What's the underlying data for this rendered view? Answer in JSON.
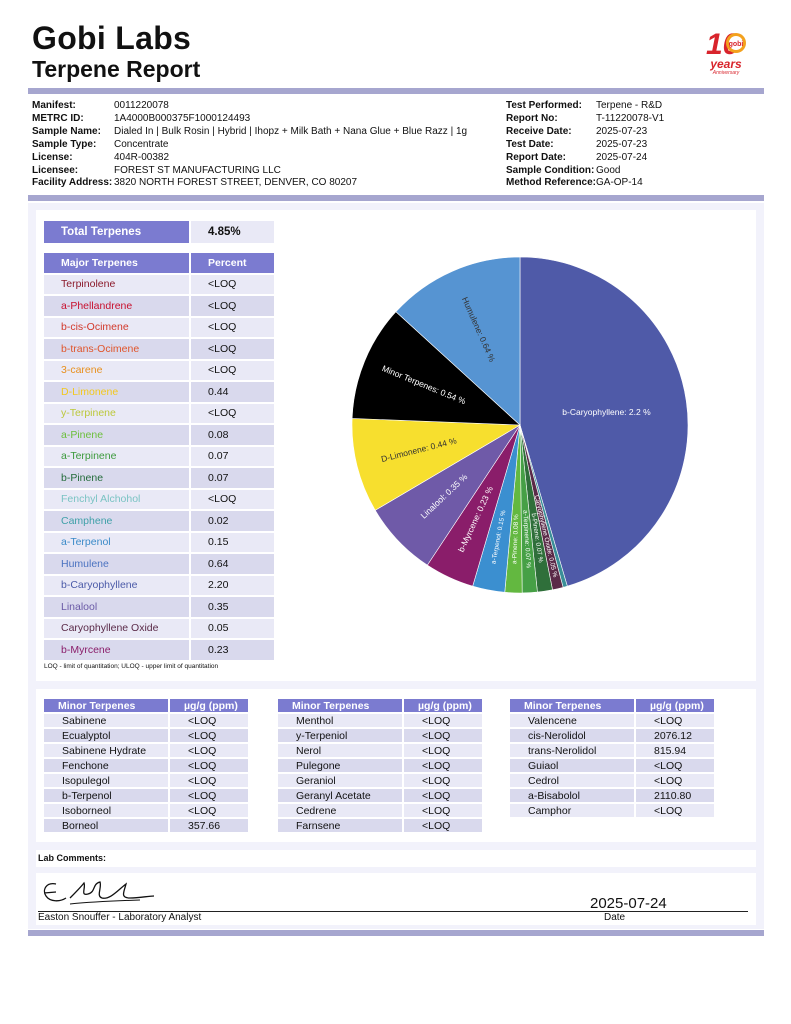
{
  "header": {
    "brand": "Gobi Labs",
    "subtitle": "Terpene Report",
    "logo": {
      "text_big": "10",
      "text_small": "years",
      "text_tiny": "Anniversary",
      "badge": "gobi",
      "color": "#d8242c",
      "accent": "#f3a11d"
    }
  },
  "meta_left": [
    {
      "k": "Manifest:",
      "v": "0011220078"
    },
    {
      "k": "METRC ID:",
      "v": "1A4000B000375F1000124493"
    },
    {
      "k": "Sample Name:",
      "v": "Dialed In | Bulk Rosin | Hybrid | Ihopz + Milk Bath + Nana Glue + Blue Razz | 1g"
    },
    {
      "k": "Sample Type:",
      "v": "Concentrate"
    },
    {
      "k": "License:",
      "v": "404R-00382"
    },
    {
      "k": "Licensee:",
      "v": "FOREST ST MANUFACTURING LLC"
    },
    {
      "k": "Facility Address:",
      "v": "3820 NORTH FOREST STREET, DENVER, CO 80207"
    }
  ],
  "meta_right": [
    {
      "k": "Test Performed:",
      "v": "Terpene - R&D"
    },
    {
      "k": "Report No:",
      "v": "T-11220078-V1"
    },
    {
      "k": "Receive Date:",
      "v": "2025-07-23"
    },
    {
      "k": "Test Date:",
      "v": "2025-07-23"
    },
    {
      "k": "Report Date:",
      "v": "2025-07-24"
    },
    {
      "k": "Sample Condition:",
      "v": "Good"
    },
    {
      "k": "Method Reference:",
      "v": "GA-OP-14"
    }
  ],
  "total": {
    "label": "Total Terpenes",
    "value": "4.85%"
  },
  "major": {
    "headers": [
      "Major Terpenes",
      "Percent"
    ],
    "rows": [
      {
        "name": "Terpinolene",
        "value": "<LOQ",
        "color": "#8b1a2b"
      },
      {
        "name": "a-Phellandrene",
        "value": "<LOQ",
        "color": "#c8102e"
      },
      {
        "name": "b-cis-Ocimene",
        "value": "<LOQ",
        "color": "#d2382a"
      },
      {
        "name": "b-trans-Ocimene",
        "value": "<LOQ",
        "color": "#e0552b"
      },
      {
        "name": "3-carene",
        "value": "<LOQ",
        "color": "#e8901e"
      },
      {
        "name": "D-Limonene",
        "value": "0.44",
        "color": "#f2c81e"
      },
      {
        "name": "y-Terpinene",
        "value": "<LOQ",
        "color": "#bcc83a"
      },
      {
        "name": "a-Pinene",
        "value": "0.08",
        "color": "#6bbf3a"
      },
      {
        "name": "a-Terpinene",
        "value": "0.07",
        "color": "#3c9a3c"
      },
      {
        "name": "b-Pinene",
        "value": "0.07",
        "color": "#236b3a"
      },
      {
        "name": "Fenchyl Alchohol",
        "value": "<LOQ",
        "color": "#7ac3c3"
      },
      {
        "name": "Camphene",
        "value": "0.02",
        "color": "#3fa0a8"
      },
      {
        "name": "a-Terpenol",
        "value": "0.15",
        "color": "#3a8ac8"
      },
      {
        "name": "Humulene",
        "value": "0.64",
        "color": "#4a72c0"
      },
      {
        "name": "b-Caryophyllene",
        "value": "2.20",
        "color": "#4b5aa8"
      },
      {
        "name": "Linalool",
        "value": "0.35",
        "color": "#6a5aa6"
      },
      {
        "name": "Caryophyllene Oxide",
        "value": "0.05",
        "color": "#5a2a48"
      },
      {
        "name": "b-Myrcene",
        "value": "0.23",
        "color": "#8a1d6a"
      }
    ],
    "footnote": "LOQ - limit of quantitation; ULOQ - upper limit of quantitation"
  },
  "chart_data": {
    "type": "pie",
    "unit": "%",
    "slices": [
      {
        "label": "b-Caryophyllene",
        "value": 2.2,
        "color": "#4f5aa8",
        "text": "b-Caryophyllene: 2.2 %"
      },
      {
        "label": "Camphene",
        "value": 0.02,
        "color": "#3a8f98",
        "text": ""
      },
      {
        "label": "Caryophyllene Oxide",
        "value": 0.05,
        "color": "#5a2a48",
        "text": "Caryophyllene Oxide: 0.05 %"
      },
      {
        "label": "b-Pinene",
        "value": 0.07,
        "color": "#2f6f3a",
        "text": "b-Pinene: 0.07 %"
      },
      {
        "label": "a-Terpinene",
        "value": 0.07,
        "color": "#46a046",
        "text": "a-Terpinene: 0.07 %"
      },
      {
        "label": "a-Pinene",
        "value": 0.08,
        "color": "#63b840",
        "text": "a-Pinene: 0.08 %"
      },
      {
        "label": "a-Terpenol",
        "value": 0.15,
        "color": "#3b8fd0",
        "text": "a-Terpenol: 0.15 %"
      },
      {
        "label": "b-Myrcene",
        "value": 0.23,
        "color": "#8a1d6a",
        "text": "b-Myrcene: 0.23 %"
      },
      {
        "label": "Linalool",
        "value": 0.35,
        "color": "#6f5aa8",
        "text": "Linalool: 0.35 %"
      },
      {
        "label": "D-Limonene",
        "value": 0.44,
        "color": "#f7df2e",
        "text": "D-Limonene: 0.44 %"
      },
      {
        "label": "Minor Terpenes",
        "value": 0.54,
        "color": "#000000",
        "text": "Minor Terpenes: 0.54 %"
      },
      {
        "label": "Humulene",
        "value": 0.64,
        "color": "#5694d2",
        "text": "Humulene: 0.64 %"
      }
    ]
  },
  "minor_tables": [
    {
      "headers": [
        "Minor Terpenes",
        "µg/g (ppm)"
      ],
      "rows": [
        [
          "Sabinene",
          "<LOQ"
        ],
        [
          "Ecualyptol",
          "<LOQ"
        ],
        [
          "Sabinene Hydrate",
          "<LOQ"
        ],
        [
          "Fenchone",
          "<LOQ"
        ],
        [
          "Isopulegol",
          "<LOQ"
        ],
        [
          "b-Terpenol",
          "<LOQ"
        ],
        [
          "Isoborneol",
          "<LOQ"
        ],
        [
          "Borneol",
          "357.66"
        ]
      ]
    },
    {
      "headers": [
        "Minor Terpenes",
        "µg/g (ppm)"
      ],
      "rows": [
        [
          "Menthol",
          "<LOQ"
        ],
        [
          "y-Terpeniol",
          "<LOQ"
        ],
        [
          "Nerol",
          "<LOQ"
        ],
        [
          "Pulegone",
          "<LOQ"
        ],
        [
          "Geraniol",
          "<LOQ"
        ],
        [
          "Geranyl Acetate",
          "<LOQ"
        ],
        [
          "Cedrene",
          "<LOQ"
        ],
        [
          "Farnsene",
          "<LOQ"
        ]
      ]
    },
    {
      "headers": [
        "Minor Terpenes",
        "µg/g (ppm)"
      ],
      "rows": [
        [
          "Valencene",
          "<LOQ"
        ],
        [
          "cis-Nerolidol",
          "2076.12"
        ],
        [
          "trans-Nerolidol",
          "815.94"
        ],
        [
          "Guiaol",
          "<LOQ"
        ],
        [
          "Cedrol",
          "<LOQ"
        ],
        [
          "a-Bisabolol",
          "2110.80"
        ],
        [
          "Camphor",
          "<LOQ"
        ]
      ]
    }
  ],
  "comments": {
    "label": "Lab Comments:"
  },
  "signature": {
    "name": "Easton Snouffer - Laboratory Analyst",
    "date": "2025-07-24",
    "date_label": "Date"
  }
}
